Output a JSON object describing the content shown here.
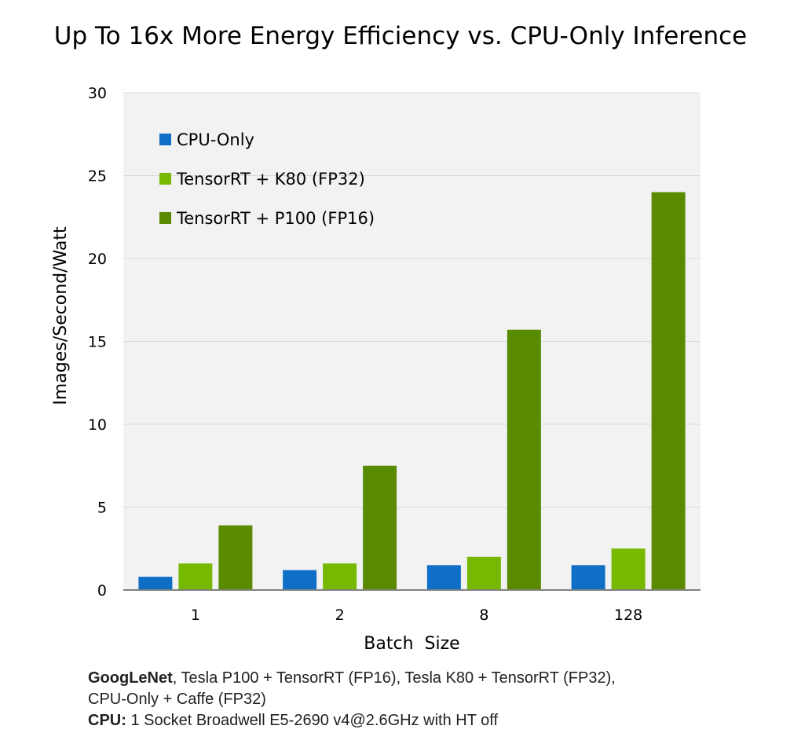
{
  "chart_data": {
    "type": "bar",
    "title": "Up To 16x More Energy Efficiency vs. CPU-Only Inference",
    "xlabel": "Batch  Size",
    "ylabel": "Images/Second/Watt",
    "categories": [
      "1",
      "2",
      "8",
      "128"
    ],
    "ylim": [
      0,
      30
    ],
    "yticks": [
      0,
      5,
      10,
      15,
      20,
      25,
      30
    ],
    "grid": true,
    "legend_position": "top-left",
    "series": [
      {
        "name": "CPU-Only",
        "color": "#0f6fc6",
        "values": [
          0.8,
          1.2,
          1.5,
          1.5
        ]
      },
      {
        "name": "TensorRT + K80 (FP32)",
        "color": "#76b900",
        "values": [
          1.6,
          1.6,
          2.0,
          2.5
        ]
      },
      {
        "name": "TensorRT + P100 (FP16)",
        "color": "#5a8a00",
        "values": [
          3.9,
          7.5,
          15.7,
          24.0
        ]
      }
    ]
  },
  "footnote": {
    "line1_bold": "GoogLeNet",
    "line1_rest": ", Tesla P100 + TensorRT (FP16), Tesla K80 + TensorRT (FP32),",
    "line2": "CPU-Only + Caffe (FP32)",
    "line3_bold": "CPU:",
    "line3_rest": " 1 Socket Broadwell E5-2690 v4@2.6GHz with HT off"
  }
}
